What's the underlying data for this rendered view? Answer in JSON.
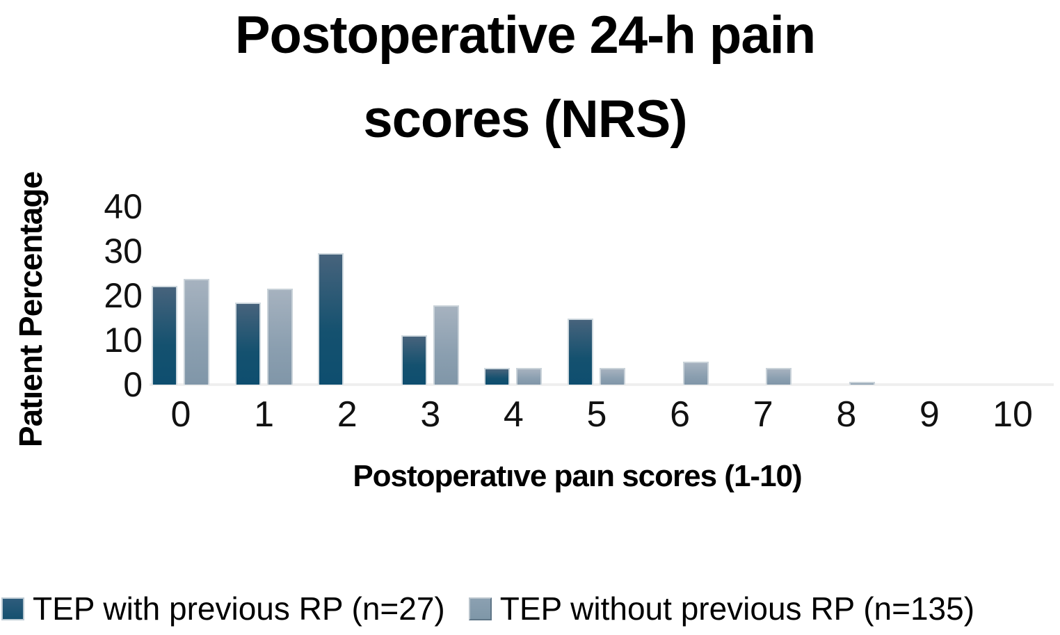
{
  "page": {
    "background": "#ffffff"
  },
  "chart_data": {
    "type": "bar",
    "title_lines": [
      "Postoperative 24-h pain",
      "scores (NRS)"
    ],
    "title": "Postoperative 24-h pain scores (NRS)",
    "xlabel": "Postoperatıve paın scores (1-10)",
    "ylabel": "Patıent Percentage",
    "categories": [
      "0",
      "1",
      "2",
      "3",
      "4",
      "5",
      "6",
      "7",
      "8",
      "9",
      "10"
    ],
    "y_ticks": [
      0,
      10,
      20,
      30,
      40
    ],
    "ylim": [
      0,
      40
    ],
    "grid": false,
    "legend_position": "bottom",
    "series": [
      {
        "name": "TEP with previous RP (n=27)",
        "color": "#15516f",
        "color_top": "#47637c",
        "color_bottom": "#0e4e6f",
        "values": [
          22.2,
          18.5,
          29.6,
          11.1,
          3.7,
          14.8,
          0,
          0,
          0,
          0,
          0
        ]
      },
      {
        "name": "TEP without previous RP (n=135)",
        "color": "#8096a8",
        "color_top": "#a6b2bf",
        "color_bottom": "#8096a8",
        "values": [
          23.7,
          21.5,
          0,
          17.8,
          3.7,
          3.7,
          5.2,
          3.7,
          0.7,
          0,
          0
        ]
      }
    ]
  }
}
